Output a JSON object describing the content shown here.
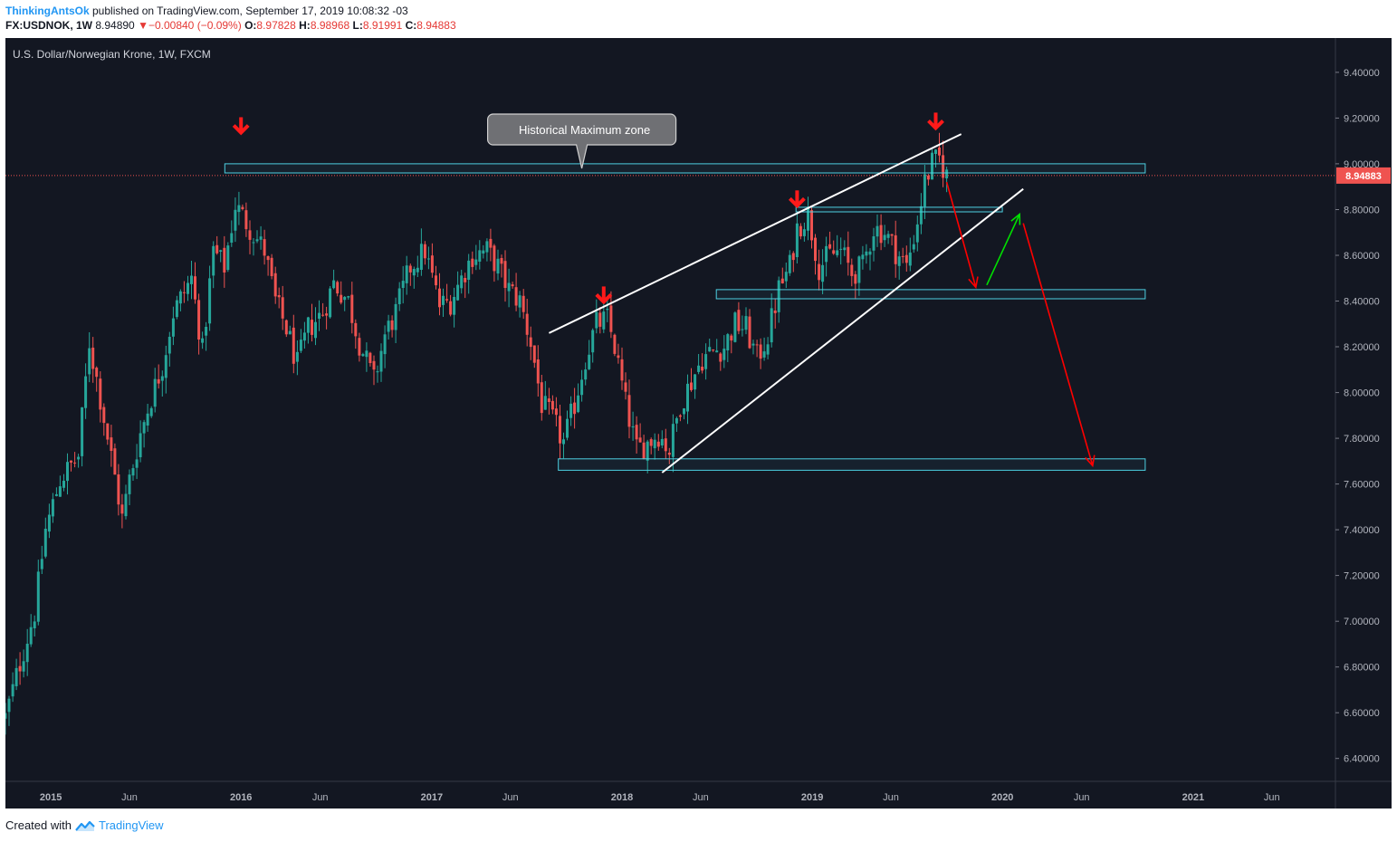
{
  "header": {
    "author": "ThinkingAntsOk",
    "published_text": " published on TradingView.com, September 17, 2019 10:08:32 -03",
    "symbol": "FX:USDNOK, 1W",
    "last": "8.94890",
    "change_arrow": "▼",
    "change": "−0.00840 (−0.09%)",
    "o_label": "O:",
    "o": "8.97828",
    "h_label": "H:",
    "h": "8.98968",
    "l_label": "L:",
    "l": "8.91991",
    "c_label": "C:",
    "c": "8.94883"
  },
  "footer": {
    "created_with": "Created with",
    "brand": "TradingView",
    "icon": "tradingview-logo-icon"
  },
  "colors": {
    "background": "#131722",
    "up": "#26a69a",
    "down": "#ef5350",
    "zone": "#4dd0e1",
    "trend": "#ffffff",
    "arrow_red": "#ff0000",
    "arrow_green": "#00e000",
    "price_line": "#ef5350",
    "axis_text": "#b2b5be"
  },
  "chart_data": {
    "type": "candlestick",
    "title": "U.S. Dollar/Norwegian Krone, 1W, FXCM",
    "price_label": "8.94883",
    "ylim": [
      6.3,
      9.55
    ],
    "xlim": [
      "2014-10-06",
      "2021-10-01"
    ],
    "y_ticks": [
      "9.40000",
      "9.20000",
      "9.00000",
      "8.80000",
      "8.60000",
      "8.40000",
      "8.20000",
      "8.00000",
      "7.80000",
      "7.60000",
      "7.40000",
      "7.20000",
      "7.00000",
      "6.80000",
      "6.60000",
      "6.40000"
    ],
    "x_ticks": [
      {
        "label": "2015",
        "date": "2015-01-01",
        "bold": true
      },
      {
        "label": "Jun",
        "date": "2015-06-01",
        "bold": false
      },
      {
        "label": "2016",
        "date": "2016-01-01",
        "bold": true
      },
      {
        "label": "Jun",
        "date": "2016-06-01",
        "bold": false
      },
      {
        "label": "2017",
        "date": "2017-01-01",
        "bold": true
      },
      {
        "label": "Jun",
        "date": "2017-06-01",
        "bold": false
      },
      {
        "label": "2018",
        "date": "2018-01-01",
        "bold": true
      },
      {
        "label": "Jun",
        "date": "2018-06-01",
        "bold": false
      },
      {
        "label": "2019",
        "date": "2019-01-01",
        "bold": true
      },
      {
        "label": "Jun",
        "date": "2019-06-01",
        "bold": false
      },
      {
        "label": "2020",
        "date": "2020-01-01",
        "bold": true
      },
      {
        "label": "Jun",
        "date": "2020-06-01",
        "bold": false
      },
      {
        "label": "2021",
        "date": "2021-01-01",
        "bold": true
      },
      {
        "label": "Jun",
        "date": "2021-06-01",
        "bold": false
      }
    ],
    "close_path": [
      [
        "2014-10-06",
        6.58
      ],
      [
        "2014-10-27",
        6.76
      ],
      [
        "2014-12-01",
        7.04
      ],
      [
        "2014-12-22",
        7.4
      ],
      [
        "2015-01-19",
        7.62
      ],
      [
        "2015-02-23",
        7.72
      ],
      [
        "2015-03-16",
        8.22
      ],
      [
        "2015-03-30",
        8.06
      ],
      [
        "2015-04-27",
        7.72
      ],
      [
        "2015-05-18",
        7.45
      ],
      [
        "2015-06-01",
        7.62
      ],
      [
        "2015-06-22",
        7.82
      ],
      [
        "2015-07-13",
        7.98
      ],
      [
        "2015-08-03",
        8.12
      ],
      [
        "2015-08-24",
        8.35
      ],
      [
        "2015-09-28",
        8.5
      ],
      [
        "2015-10-19",
        8.18
      ],
      [
        "2015-11-09",
        8.62
      ],
      [
        "2015-11-30",
        8.55
      ],
      [
        "2015-12-21",
        8.82
      ],
      [
        "2016-01-18",
        8.72
      ],
      [
        "2016-02-15",
        8.62
      ],
      [
        "2016-03-07",
        8.4
      ],
      [
        "2016-03-28",
        8.28
      ],
      [
        "2016-04-18",
        8.12
      ],
      [
        "2016-05-09",
        8.28
      ],
      [
        "2016-06-06",
        8.35
      ],
      [
        "2016-06-27",
        8.48
      ],
      [
        "2016-07-25",
        8.4
      ],
      [
        "2016-08-15",
        8.22
      ],
      [
        "2016-09-12",
        8.05
      ],
      [
        "2016-10-03",
        8.25
      ],
      [
        "2016-10-24",
        8.35
      ],
      [
        "2016-11-21",
        8.55
      ],
      [
        "2016-12-19",
        8.62
      ],
      [
        "2017-01-16",
        8.38
      ],
      [
        "2017-02-06",
        8.4
      ],
      [
        "2017-02-27",
        8.5
      ],
      [
        "2017-03-20",
        8.6
      ],
      [
        "2017-04-17",
        8.62
      ],
      [
        "2017-05-08",
        8.55
      ],
      [
        "2017-05-29",
        8.45
      ],
      [
        "2017-06-19",
        8.4
      ],
      [
        "2017-07-10",
        8.22
      ],
      [
        "2017-07-31",
        7.95
      ],
      [
        "2017-08-21",
        7.88
      ],
      [
        "2017-09-11",
        7.78
      ],
      [
        "2017-10-02",
        7.95
      ],
      [
        "2017-10-23",
        8.15
      ],
      [
        "2017-11-13",
        8.3
      ],
      [
        "2017-12-04",
        8.32
      ],
      [
        "2017-12-18",
        8.2
      ],
      [
        "2018-01-08",
        7.95
      ],
      [
        "2018-01-29",
        7.75
      ],
      [
        "2018-02-19",
        7.78
      ],
      [
        "2018-03-12",
        7.82
      ],
      [
        "2018-04-02",
        7.75
      ],
      [
        "2018-04-23",
        7.95
      ],
      [
        "2018-05-14",
        8.05
      ],
      [
        "2018-06-04",
        8.15
      ],
      [
        "2018-06-25",
        8.18
      ],
      [
        "2018-07-16",
        8.2
      ],
      [
        "2018-08-06",
        8.3
      ],
      [
        "2018-08-27",
        8.28
      ],
      [
        "2018-09-17",
        8.15
      ],
      [
        "2018-10-08",
        8.25
      ],
      [
        "2018-10-29",
        8.45
      ],
      [
        "2018-11-19",
        8.55
      ],
      [
        "2018-12-03",
        8.72
      ],
      [
        "2018-12-24",
        8.78
      ],
      [
        "2019-01-14",
        8.55
      ],
      [
        "2019-02-04",
        8.6
      ],
      [
        "2019-02-25",
        8.62
      ],
      [
        "2019-03-18",
        8.52
      ],
      [
        "2019-04-08",
        8.55
      ],
      [
        "2019-04-29",
        8.72
      ],
      [
        "2019-05-20",
        8.7
      ],
      [
        "2019-06-10",
        8.62
      ],
      [
        "2019-07-01",
        8.55
      ],
      [
        "2019-07-22",
        8.75
      ],
      [
        "2019-08-05",
        8.92
      ],
      [
        "2019-08-19",
        9.0
      ],
      [
        "2019-09-02",
        9.02
      ],
      [
        "2019-09-16",
        8.95
      ]
    ],
    "zones": [
      {
        "name": "historical-maximum-zone",
        "from": "2015-12-01",
        "to": "2020-10-01",
        "low": 8.96,
        "high": 9.0
      },
      {
        "name": "resistance-zone-880",
        "from": "2018-12-01",
        "to": "2020-01-01",
        "low": 8.79,
        "high": 8.81
      },
      {
        "name": "support-zone-842",
        "from": "2018-07-01",
        "to": "2020-10-01",
        "low": 8.41,
        "high": 8.45
      },
      {
        "name": "support-zone-768",
        "from": "2017-09-01",
        "to": "2020-10-01",
        "low": 7.66,
        "high": 7.71
      }
    ],
    "trendlines": [
      {
        "name": "upper-trendline",
        "x1": "2017-08-14",
        "y1": 8.26,
        "x2": "2019-10-14",
        "y2": 9.13
      },
      {
        "name": "lower-trendline",
        "x1": "2018-03-19",
        "y1": 7.65,
        "x2": "2020-02-10",
        "y2": 8.89
      }
    ],
    "arrows": [
      {
        "name": "down-arrow-right-drop",
        "color": "red",
        "x1": "2019-09-16",
        "y1": 8.92,
        "x2": "2019-11-11",
        "y2": 8.46
      },
      {
        "name": "up-arrow-rebound",
        "color": "green",
        "x1": "2019-12-02",
        "y1": 8.47,
        "x2": "2020-02-03",
        "y2": 8.78
      },
      {
        "name": "down-arrow-target",
        "color": "red",
        "x1": "2020-02-10",
        "y1": 8.74,
        "x2": "2020-06-22",
        "y2": 7.68
      }
    ],
    "markers": [
      {
        "name": "top-marker-2016",
        "date": "2016-01-01",
        "value": 9.18
      },
      {
        "name": "top-marker-2017",
        "date": "2017-11-27",
        "value": 8.44
      },
      {
        "name": "top-marker-2018",
        "date": "2018-12-03",
        "value": 8.86
      },
      {
        "name": "top-marker-2019",
        "date": "2019-08-26",
        "value": 9.2
      }
    ],
    "callout": {
      "text": "Historical Maximum zone",
      "date": "2017-10-16",
      "value": 9.15,
      "pointer_value": 8.98
    }
  }
}
